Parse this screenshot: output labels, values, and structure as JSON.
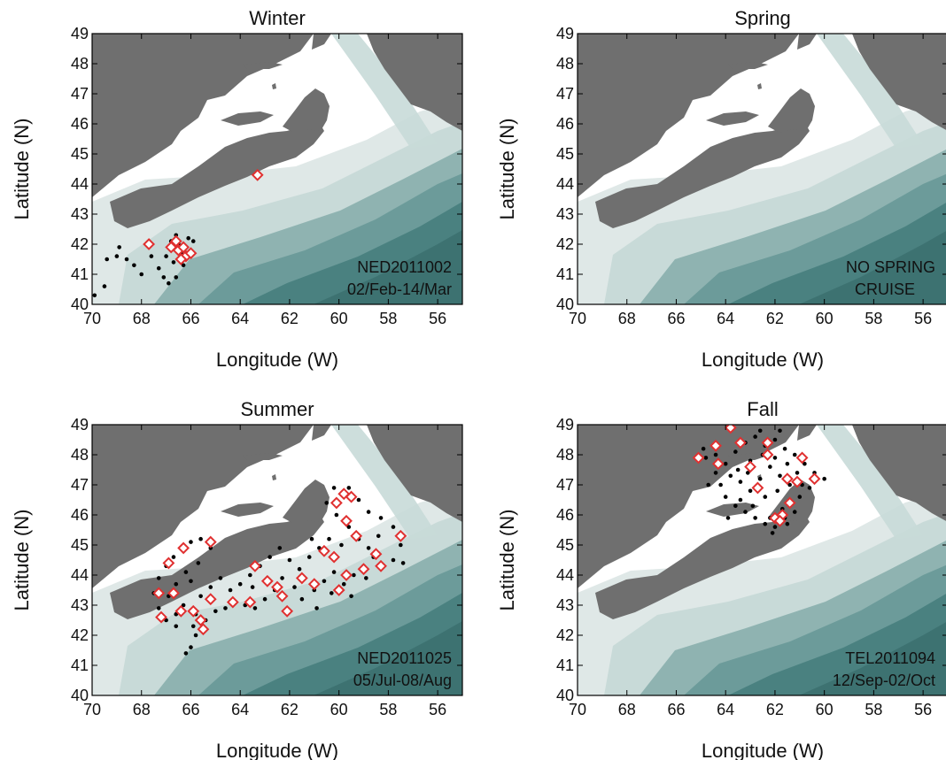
{
  "figure": {
    "colors": {
      "land": "#6f6f6f",
      "shelf_shallow": "#ffffff",
      "shelf_mid": "#dfe8e7",
      "shelf_mid2": "#c8dad8",
      "slope1": "#8fb3b1",
      "slope2": "#6c9b9a",
      "deep": "#4a8180",
      "deepest": "#3d7271",
      "station": "#000000",
      "marker": "#e03030"
    },
    "marker_icon": "diamond-icon",
    "station_icon": "dot-icon",
    "panels": [
      {
        "title": "Winter",
        "xlabel": "Longitude (W)",
        "ylabel": "Latitude (N)",
        "xlim": [
          70,
          55
        ],
        "ylim": [
          40,
          49
        ],
        "xticks": [
          "70",
          "68",
          "66",
          "64",
          "62",
          "60",
          "58",
          "56"
        ],
        "yticks": [
          "40",
          "41",
          "42",
          "43",
          "44",
          "45",
          "46",
          "47",
          "48",
          "49"
        ],
        "annotation": [
          "NED2011002",
          "02/Feb-14/Mar"
        ],
        "stations": [
          [
            69.9,
            40.3
          ],
          [
            69.5,
            40.6
          ],
          [
            69.4,
            41.5
          ],
          [
            69.0,
            41.6
          ],
          [
            68.6,
            41.5
          ],
          [
            68.3,
            41.3
          ],
          [
            68.0,
            41.0
          ],
          [
            67.6,
            41.6
          ],
          [
            67.3,
            41.2
          ],
          [
            67.0,
            41.6
          ],
          [
            66.9,
            41.9
          ],
          [
            66.8,
            42.1
          ],
          [
            66.6,
            42.3
          ],
          [
            66.5,
            42.0
          ],
          [
            66.4,
            41.7
          ],
          [
            66.2,
            41.9
          ],
          [
            66.1,
            42.2
          ],
          [
            66.0,
            41.6
          ],
          [
            65.9,
            42.1
          ],
          [
            66.6,
            40.9
          ],
          [
            66.9,
            40.7
          ],
          [
            67.1,
            40.9
          ],
          [
            66.7,
            41.4
          ],
          [
            66.3,
            41.3
          ],
          [
            67.8,
            42.0
          ],
          [
            68.9,
            41.9
          ],
          [
            63.3,
            44.2
          ]
        ],
        "markers": [
          [
            67.7,
            42.0
          ],
          [
            66.8,
            41.9
          ],
          [
            66.6,
            42.1
          ],
          [
            66.5,
            41.8
          ],
          [
            66.3,
            41.9
          ],
          [
            66.2,
            41.6
          ],
          [
            66.4,
            41.5
          ],
          [
            66.0,
            41.7
          ],
          [
            63.3,
            44.3
          ]
        ]
      },
      {
        "title": "Spring",
        "xlabel": "Longitude (W)",
        "ylabel": "Latitude (N)",
        "xlim": [
          70,
          55
        ],
        "ylim": [
          40,
          49
        ],
        "xticks": [
          "70",
          "68",
          "66",
          "64",
          "62",
          "60",
          "58",
          "56"
        ],
        "yticks": [
          "40",
          "41",
          "42",
          "43",
          "44",
          "45",
          "46",
          "47",
          "48",
          "49"
        ],
        "annotation": [
          "NO SPRING",
          "CRUISE"
        ],
        "stations": [],
        "markers": []
      },
      {
        "title": "Summer",
        "xlabel": "Longitude (W)",
        "ylabel": "Latitude (N)",
        "xlim": [
          70,
          55
        ],
        "ylim": [
          40,
          49
        ],
        "xticks": [
          "70",
          "68",
          "66",
          "64",
          "62",
          "60",
          "58",
          "56"
        ],
        "yticks": [
          "40",
          "41",
          "42",
          "43",
          "44",
          "45",
          "46",
          "47",
          "48",
          "49"
        ],
        "annotation": [
          "NED2011025",
          "05/Jul-08/Aug"
        ],
        "stations": [
          [
            66.2,
            41.4
          ],
          [
            66.0,
            41.6
          ],
          [
            65.8,
            42.0
          ],
          [
            66.6,
            42.3
          ],
          [
            67.0,
            42.5
          ],
          [
            67.3,
            42.9
          ],
          [
            67.5,
            43.4
          ],
          [
            67.3,
            43.9
          ],
          [
            67.0,
            44.3
          ],
          [
            66.7,
            44.6
          ],
          [
            66.4,
            44.9
          ],
          [
            66.0,
            45.1
          ],
          [
            65.6,
            45.2
          ],
          [
            65.2,
            44.9
          ],
          [
            65.7,
            44.4
          ],
          [
            66.2,
            44.1
          ],
          [
            66.6,
            43.7
          ],
          [
            66.9,
            43.3
          ],
          [
            66.3,
            43.0
          ],
          [
            65.8,
            42.7
          ],
          [
            65.4,
            42.5
          ],
          [
            65.0,
            42.8
          ],
          [
            64.6,
            42.9
          ],
          [
            64.2,
            43.1
          ],
          [
            63.8,
            43.0
          ],
          [
            63.4,
            42.9
          ],
          [
            63.0,
            43.2
          ],
          [
            62.6,
            43.5
          ],
          [
            62.2,
            43.3
          ],
          [
            61.8,
            43.6
          ],
          [
            61.4,
            43.9
          ],
          [
            61.0,
            43.5
          ],
          [
            60.6,
            43.8
          ],
          [
            60.2,
            44.1
          ],
          [
            59.8,
            43.7
          ],
          [
            59.4,
            44.0
          ],
          [
            59.0,
            44.3
          ],
          [
            58.6,
            44.6
          ],
          [
            58.2,
            44.3
          ],
          [
            57.8,
            44.5
          ],
          [
            57.4,
            44.4
          ],
          [
            57.5,
            45.0
          ],
          [
            57.8,
            45.6
          ],
          [
            58.3,
            45.9
          ],
          [
            58.8,
            46.1
          ],
          [
            59.2,
            46.5
          ],
          [
            59.6,
            46.9
          ],
          [
            60.2,
            46.9
          ],
          [
            60.5,
            46.4
          ],
          [
            60.1,
            46.0
          ],
          [
            59.6,
            45.6
          ],
          [
            59.2,
            45.2
          ],
          [
            58.8,
            44.9
          ],
          [
            60.4,
            45.2
          ],
          [
            60.8,
            44.9
          ],
          [
            61.2,
            44.6
          ],
          [
            61.6,
            44.2
          ],
          [
            62.0,
            44.5
          ],
          [
            62.4,
            44.9
          ],
          [
            62.8,
            44.6
          ],
          [
            63.2,
            44.3
          ],
          [
            63.6,
            44.0
          ],
          [
            64.0,
            43.7
          ],
          [
            64.4,
            43.5
          ],
          [
            64.8,
            43.9
          ],
          [
            65.2,
            43.6
          ],
          [
            65.6,
            43.3
          ],
          [
            66.0,
            43.8
          ],
          [
            62.3,
            43.9
          ],
          [
            61.5,
            43.2
          ],
          [
            60.9,
            42.9
          ],
          [
            60.3,
            43.4
          ],
          [
            59.5,
            43.3
          ],
          [
            58.9,
            43.9
          ],
          [
            62.9,
            43.9
          ],
          [
            63.5,
            43.6
          ],
          [
            61.1,
            45.2
          ],
          [
            60.6,
            44.7
          ],
          [
            59.9,
            45.0
          ],
          [
            58.4,
            45.3
          ],
          [
            65.9,
            42.3
          ],
          [
            66.6,
            42.7
          ]
        ],
        "markers": [
          [
            67.2,
            42.6
          ],
          [
            67.3,
            43.4
          ],
          [
            66.9,
            44.4
          ],
          [
            66.3,
            44.9
          ],
          [
            65.2,
            45.1
          ],
          [
            66.7,
            43.4
          ],
          [
            66.4,
            42.8
          ],
          [
            65.9,
            42.8
          ],
          [
            65.6,
            42.5
          ],
          [
            65.5,
            42.2
          ],
          [
            65.2,
            43.2
          ],
          [
            64.3,
            43.1
          ],
          [
            63.6,
            43.1
          ],
          [
            63.4,
            44.3
          ],
          [
            62.9,
            43.8
          ],
          [
            62.5,
            43.6
          ],
          [
            62.3,
            43.3
          ],
          [
            62.1,
            42.8
          ],
          [
            61.5,
            43.9
          ],
          [
            61.0,
            43.7
          ],
          [
            60.6,
            44.8
          ],
          [
            60.2,
            44.6
          ],
          [
            59.7,
            44.0
          ],
          [
            59.3,
            45.3
          ],
          [
            59.0,
            44.2
          ],
          [
            58.5,
            44.7
          ],
          [
            58.3,
            44.3
          ],
          [
            57.5,
            45.3
          ],
          [
            59.7,
            45.8
          ],
          [
            60.1,
            46.4
          ],
          [
            59.5,
            46.6
          ],
          [
            59.8,
            46.7
          ],
          [
            60.0,
            43.5
          ]
        ]
      },
      {
        "title": "Fall",
        "xlabel": "Longitude (W)",
        "ylabel": "Latitude (N)",
        "xlim": [
          70,
          55
        ],
        "ylim": [
          40,
          49
        ],
        "xticks": [
          "70",
          "68",
          "66",
          "64",
          "62",
          "60",
          "58",
          "56"
        ],
        "yticks": [
          "40",
          "41",
          "42",
          "43",
          "44",
          "45",
          "46",
          "47",
          "48",
          "49"
        ],
        "annotation": [
          "TEL2011094",
          "12/Sep-02/Oct"
        ],
        "stations": [
          [
            64.8,
            47.9
          ],
          [
            64.4,
            48.0
          ],
          [
            64.0,
            47.7
          ],
          [
            63.6,
            48.1
          ],
          [
            63.2,
            48.4
          ],
          [
            62.8,
            48.6
          ],
          [
            62.4,
            48.3
          ],
          [
            62.0,
            48.5
          ],
          [
            61.6,
            48.2
          ],
          [
            61.2,
            48.0
          ],
          [
            60.8,
            47.7
          ],
          [
            60.4,
            47.4
          ],
          [
            60.0,
            47.2
          ],
          [
            60.6,
            46.9
          ],
          [
            61.0,
            46.6
          ],
          [
            61.4,
            46.3
          ],
          [
            61.6,
            45.9
          ],
          [
            62.0,
            45.6
          ],
          [
            62.4,
            45.7
          ],
          [
            62.8,
            45.9
          ],
          [
            63.2,
            46.1
          ],
          [
            63.6,
            46.3
          ],
          [
            64.0,
            46.6
          ],
          [
            64.2,
            47.0
          ],
          [
            63.8,
            47.3
          ],
          [
            63.4,
            47.1
          ],
          [
            63.0,
            46.8
          ],
          [
            62.6,
            47.2
          ],
          [
            62.2,
            47.6
          ],
          [
            61.8,
            47.3
          ],
          [
            61.4,
            47.0
          ],
          [
            61.1,
            47.4
          ],
          [
            61.5,
            47.7
          ],
          [
            62.0,
            47.9
          ],
          [
            62.5,
            48.0
          ],
          [
            63.0,
            47.8
          ],
          [
            63.5,
            47.5
          ],
          [
            64.4,
            47.4
          ],
          [
            64.7,
            47.0
          ],
          [
            63.9,
            45.9
          ],
          [
            63.4,
            46.5
          ],
          [
            62.9,
            46.3
          ],
          [
            62.4,
            46.6
          ],
          [
            61.9,
            46.8
          ],
          [
            61.7,
            46.2
          ],
          [
            61.2,
            46.1
          ],
          [
            62.2,
            45.9
          ],
          [
            64.9,
            48.2
          ],
          [
            62.6,
            48.8
          ],
          [
            61.8,
            48.8
          ],
          [
            63.1,
            47.4
          ],
          [
            60.9,
            47.0
          ],
          [
            61.5,
            45.7
          ],
          [
            62.1,
            45.4
          ]
        ],
        "markers": [
          [
            65.1,
            47.9
          ],
          [
            64.3,
            47.7
          ],
          [
            64.4,
            48.3
          ],
          [
            63.8,
            48.9
          ],
          [
            63.4,
            48.4
          ],
          [
            63.0,
            47.6
          ],
          [
            62.7,
            46.9
          ],
          [
            62.3,
            48.4
          ],
          [
            62.3,
            48.0
          ],
          [
            61.5,
            47.2
          ],
          [
            61.1,
            47.1
          ],
          [
            60.9,
            47.9
          ],
          [
            60.4,
            47.2
          ],
          [
            61.4,
            46.4
          ],
          [
            61.7,
            46.0
          ],
          [
            62.0,
            45.9
          ],
          [
            61.8,
            45.8
          ]
        ]
      }
    ]
  }
}
